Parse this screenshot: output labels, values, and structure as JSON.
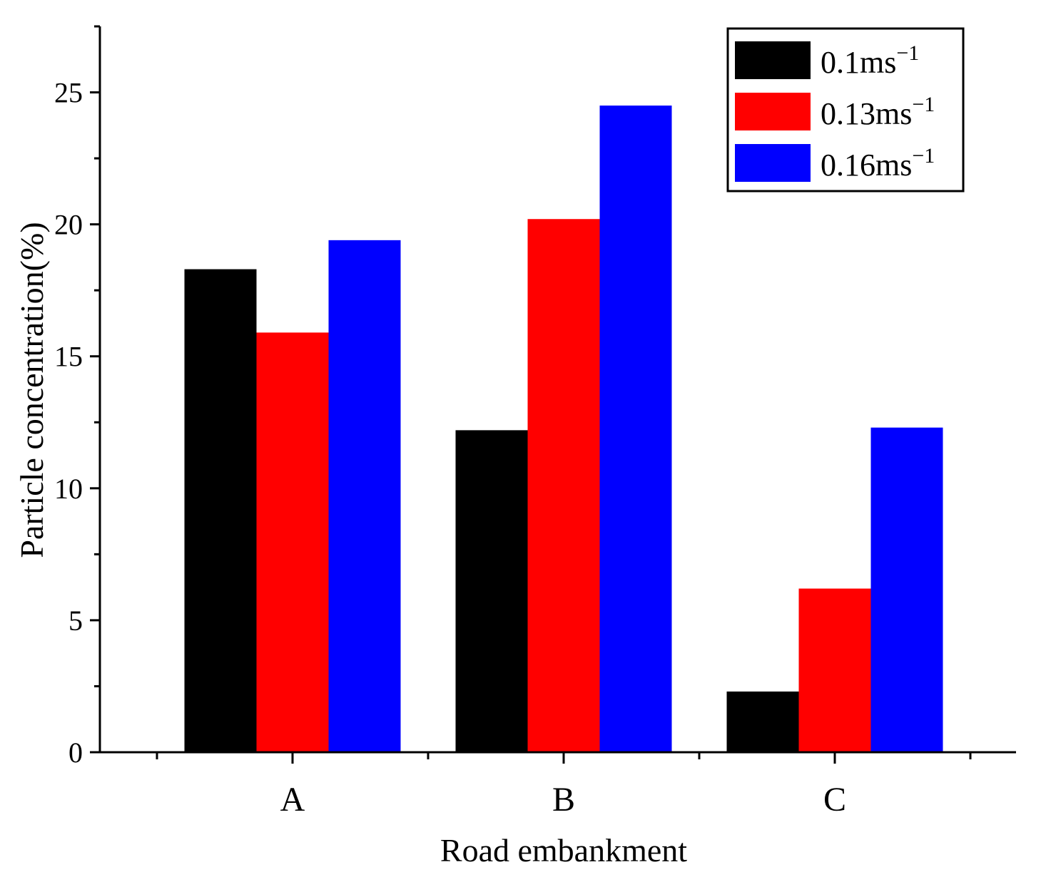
{
  "chart_data": {
    "type": "bar",
    "title": "",
    "xlabel": "Road embankment",
    "ylabel": "Particle concentration(%)",
    "categories": [
      "A",
      "B",
      "C"
    ],
    "ylim": [
      0,
      27.5
    ],
    "yticks": [
      0,
      5,
      10,
      15,
      20,
      25
    ],
    "grid": false,
    "legend_position": "top-right",
    "series": [
      {
        "name": "0.1ms",
        "superscript": "−1",
        "color": "#000000",
        "values": [
          18.3,
          12.2,
          2.3
        ]
      },
      {
        "name": "0.13ms",
        "superscript": "−1",
        "color": "#ff0000",
        "values": [
          15.9,
          20.2,
          6.2
        ]
      },
      {
        "name": "0.16ms",
        "superscript": "−1",
        "color": "#0000ff",
        "values": [
          19.4,
          24.5,
          12.3
        ]
      }
    ]
  }
}
